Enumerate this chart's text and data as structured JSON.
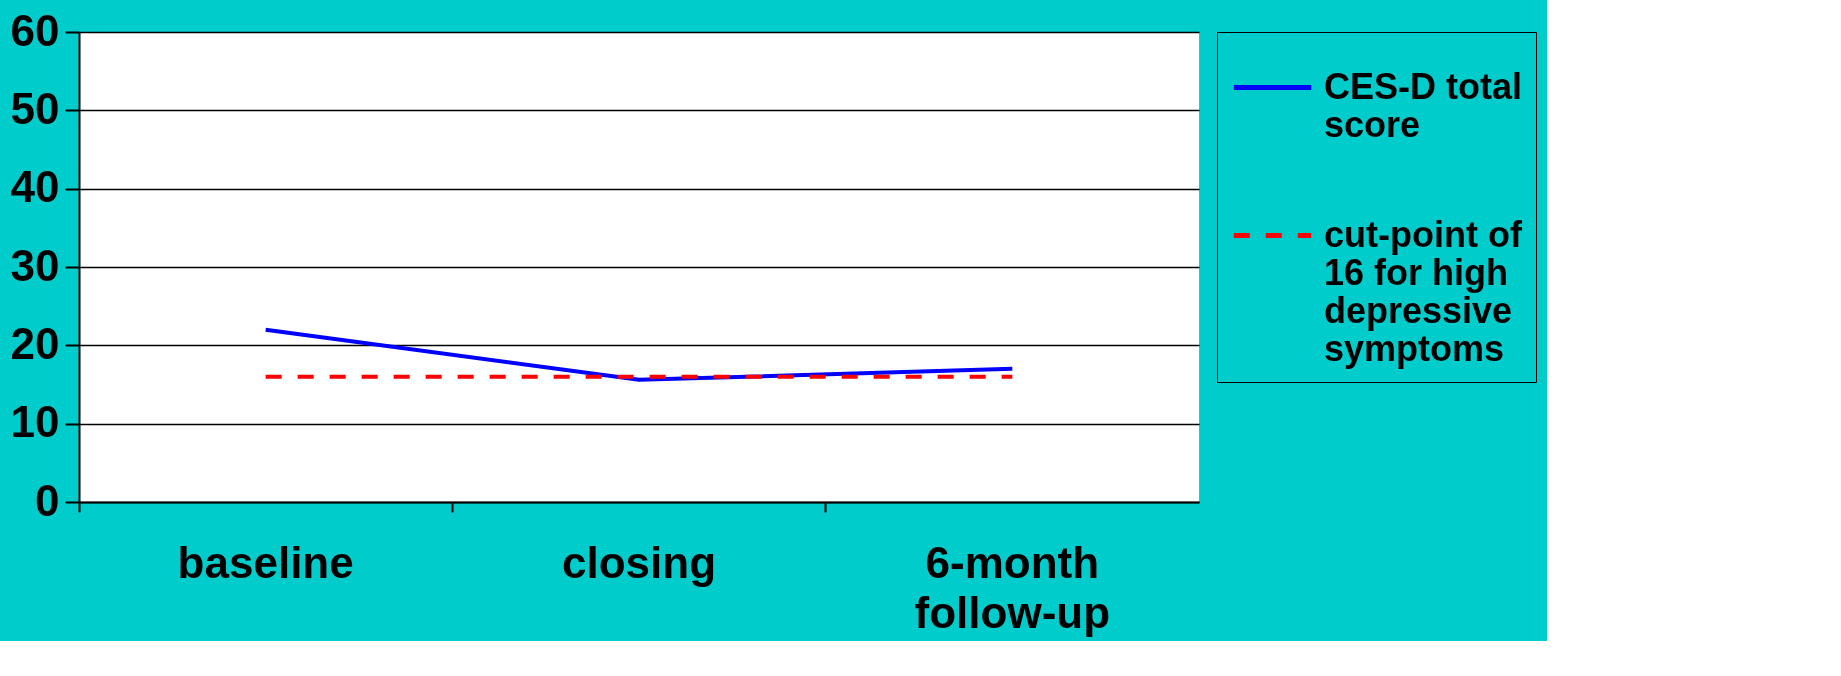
{
  "chart_data": {
    "type": "line",
    "categories": [
      "baseline",
      "closing",
      "6-month follow-up"
    ],
    "series": [
      {
        "name": "CES-D total score",
        "color": "#0000ff",
        "line_style": "solid",
        "values": [
          22,
          15.6,
          17
        ]
      },
      {
        "name": "cut-point of 16 for high depressive symptoms",
        "color": "#ff0000",
        "line_style": "dashed",
        "values": [
          16,
          16,
          16
        ]
      }
    ],
    "ylim": [
      0,
      60
    ],
    "yticks": [
      0,
      10,
      20,
      30,
      40,
      50,
      60
    ],
    "grid": "y",
    "legend": "right",
    "marker": "none"
  }
}
